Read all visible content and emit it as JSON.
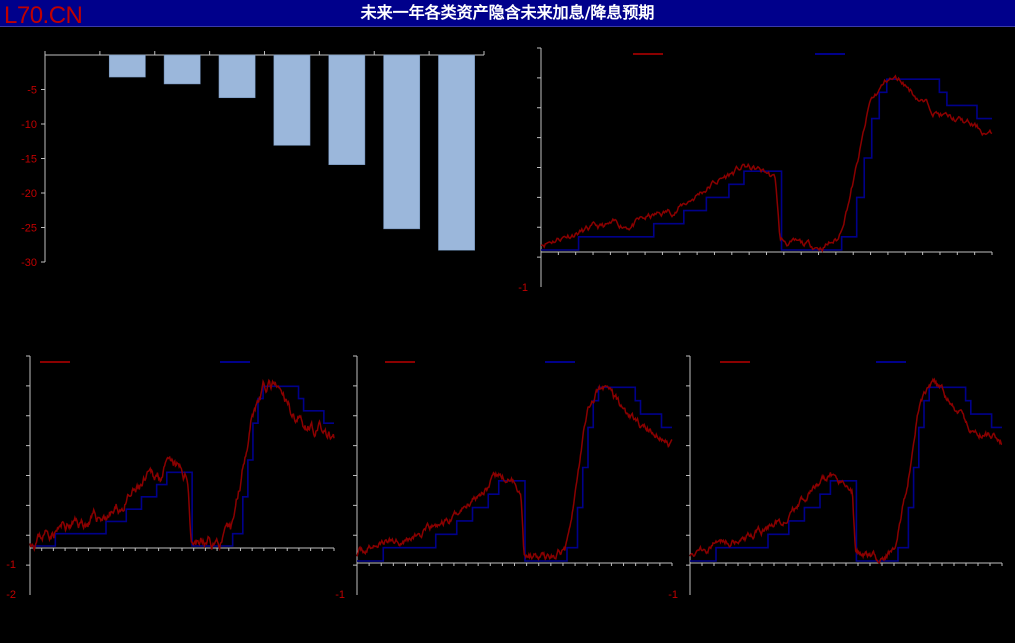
{
  "header": {
    "logo": "L70.CN",
    "title": "未来一年各类资产隐含未来加息/降息预期"
  },
  "colors": {
    "title_bar": "#00008b",
    "bar": "#9bb7db",
    "implied_series": "#8b0000",
    "step_series": "#00008b",
    "tick_label": "#c00000"
  },
  "chart_data": [
    {
      "type": "bar",
      "categories": [
        "",
        "",
        "",
        "",
        "",
        "",
        "",
        ""
      ],
      "values": [
        0,
        -3.2,
        -4.2,
        -6.2,
        -13.1,
        -15.9,
        -25.2,
        -28.3
      ],
      "ylim": [
        -30,
        0
      ],
      "ytick_labels": [
        "-5",
        "-10",
        "-15",
        "-20",
        "-25",
        "-30"
      ]
    },
    {
      "type": "line",
      "series": [
        {
          "values": []
        },
        {
          "values": []
        }
      ],
      "legend": "top",
      "ytick_labels": [
        "-1"
      ]
    },
    {
      "type": "line",
      "series": [
        {
          "values": []
        },
        {
          "values": []
        }
      ],
      "legend": "top",
      "ytick_labels": [
        "-1",
        "-2"
      ]
    },
    {
      "type": "line",
      "series": [
        {
          "values": []
        },
        {
          "values": []
        }
      ],
      "legend": "top",
      "ytick_labels": [
        "-1"
      ]
    },
    {
      "type": "line",
      "series": [
        {
          "values": []
        },
        {
          "values": []
        }
      ],
      "legend": "top",
      "ytick_labels": [
        "-1"
      ]
    }
  ]
}
